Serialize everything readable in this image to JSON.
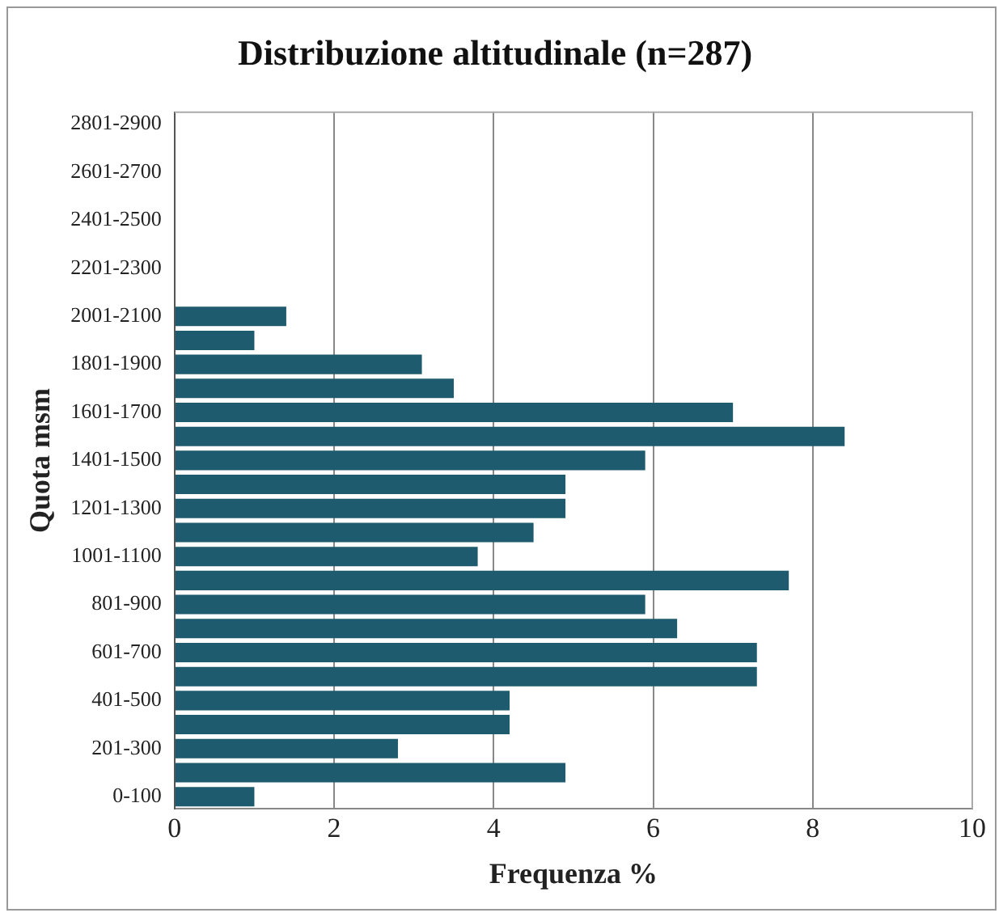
{
  "chart_data": {
    "type": "bar",
    "orientation": "horizontal",
    "title": "Distribuzione altitudinale (n=287)",
    "xlabel": "Frequenza %",
    "ylabel": "Quota msm",
    "categories": [
      "2801-2900",
      null,
      "2601-2700",
      null,
      "2401-2500",
      null,
      "2201-2300",
      null,
      "2001-2100",
      null,
      "1801-1900",
      null,
      "1601-1700",
      null,
      "1401-1500",
      null,
      "1201-1300",
      null,
      "1001-1100",
      null,
      "801-900",
      null,
      "601-700",
      null,
      "401-500",
      null,
      "201-300",
      null,
      "0-100"
    ],
    "values": [
      0,
      0,
      0,
      0,
      0,
      0,
      0,
      0,
      1.4,
      1.0,
      3.1,
      3.5,
      7.0,
      8.4,
      5.9,
      4.9,
      4.9,
      4.5,
      3.8,
      7.7,
      5.9,
      6.3,
      7.3,
      7.3,
      4.2,
      4.2,
      2.8,
      4.9,
      1.0
    ],
    "color": "#1f5b6e",
    "xlim": [
      0,
      10
    ],
    "xticks": [
      0,
      2,
      4,
      6,
      8,
      10
    ],
    "grid": "x",
    "legend": false
  }
}
